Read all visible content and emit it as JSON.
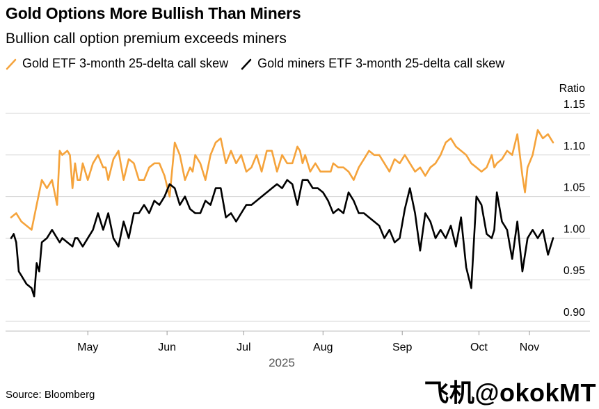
{
  "chart_data": {
    "type": "line",
    "title": "Gold Options More Bullish Than Miners",
    "subtitle": "Bullion call option premium exceeds miners",
    "ylabel": "Ratio",
    "ylim": [
      0.88,
      1.16
    ],
    "yticks": [
      "1.15",
      "1.10",
      "1.05",
      "1.00",
      "0.95",
      "0.90"
    ],
    "ytick_values": [
      1.15,
      1.1,
      1.05,
      1.0,
      0.95,
      0.9
    ],
    "xlim": [
      0,
      212
    ],
    "xticks": [
      "May",
      "Jun",
      "Jul",
      "Aug",
      "Sep",
      "Oct",
      "Nov"
    ],
    "xtick_values": [
      30,
      61,
      91,
      122,
      153,
      183,
      214
    ],
    "xlabel_year": "2025",
    "grid": true,
    "series": [
      {
        "name": "Gold ETF 3-month 25-delta call skew",
        "color": "#f5a33b",
        "x": [
          0,
          2,
          4,
          8,
          10,
          12,
          14,
          16,
          18,
          19,
          20,
          22,
          23,
          24,
          25,
          26,
          27,
          28,
          30,
          32,
          34,
          36,
          37,
          38,
          40,
          42,
          44,
          46,
          48,
          50,
          52,
          54,
          56,
          58,
          60,
          62,
          64,
          66,
          68,
          70,
          71,
          72,
          74,
          76,
          78,
          80,
          82,
          84,
          86,
          88,
          90,
          92,
          94,
          96,
          98,
          100,
          102,
          104,
          106,
          108,
          110,
          112,
          113,
          114,
          115,
          117,
          119,
          121,
          123,
          125,
          126,
          128,
          130,
          132,
          134,
          136,
          138,
          140,
          142,
          144,
          146,
          148,
          150,
          152,
          154,
          156,
          158,
          160,
          162,
          164,
          166,
          168,
          170,
          172,
          174,
          176,
          178,
          180,
          182,
          184,
          186,
          188,
          189,
          190,
          192,
          194,
          196,
          198,
          200,
          201,
          202,
          204,
          206,
          208,
          210,
          212
        ],
        "values": [
          1.025,
          1.03,
          1.02,
          1.01,
          1.04,
          1.07,
          1.06,
          1.07,
          1.04,
          1.105,
          1.1,
          1.105,
          1.1,
          1.06,
          1.09,
          1.07,
          1.07,
          1.09,
          1.07,
          1.09,
          1.1,
          1.085,
          1.085,
          1.07,
          1.095,
          1.105,
          1.07,
          1.095,
          1.09,
          1.07,
          1.07,
          1.085,
          1.09,
          1.09,
          1.075,
          1.05,
          1.115,
          1.1,
          1.07,
          1.085,
          1.08,
          1.1,
          1.09,
          1.07,
          1.1,
          1.115,
          1.12,
          1.09,
          1.105,
          1.09,
          1.1,
          1.08,
          1.085,
          1.1,
          1.08,
          1.105,
          1.105,
          1.08,
          1.1,
          1.09,
          1.09,
          1.11,
          1.105,
          1.09,
          1.1,
          1.08,
          1.09,
          1.08,
          1.08,
          1.08,
          1.09,
          1.085,
          1.085,
          1.08,
          1.07,
          1.085,
          1.095,
          1.105,
          1.1,
          1.1,
          1.09,
          1.08,
          1.095,
          1.09,
          1.1,
          1.09,
          1.08,
          1.085,
          1.075,
          1.085,
          1.09,
          1.1,
          1.115,
          1.12,
          1.11,
          1.105,
          1.1,
          1.09,
          1.085,
          1.08,
          1.085,
          1.1,
          1.085,
          1.09,
          1.095,
          1.105,
          1.1,
          1.125,
          1.075,
          1.055,
          1.085,
          1.1,
          1.13,
          1.12,
          1.125,
          1.115
        ],
        "x2": [],
        "values2": []
      },
      {
        "name": "Gold miners ETF 3-month 25-delta call skew",
        "color": "#000000",
        "x": [
          0,
          1,
          2,
          3,
          4,
          6,
          8,
          9,
          10,
          11,
          12,
          14,
          16,
          18,
          19,
          20,
          22,
          24,
          25,
          26,
          28,
          30,
          32,
          34,
          36,
          38,
          40,
          42,
          44,
          46,
          48,
          50,
          52,
          54,
          56,
          58,
          60,
          62,
          64,
          66,
          68,
          70,
          72,
          74,
          76,
          78,
          80,
          82,
          84,
          86,
          88,
          90,
          92,
          94,
          96,
          98,
          100,
          102,
          104,
          106,
          108,
          110,
          112,
          114,
          116,
          118,
          120,
          122,
          124,
          126,
          128,
          130,
          132,
          134,
          136,
          138,
          140,
          142,
          144,
          146,
          148,
          150,
          152,
          154,
          156,
          158,
          160,
          162,
          164,
          166,
          168,
          170,
          172,
          174,
          176,
          178,
          180,
          182,
          184,
          186,
          188,
          189,
          190,
          192,
          194,
          196,
          198,
          200,
          202,
          204,
          206,
          208,
          210,
          212
        ],
        "values": [
          1.0,
          1.005,
          0.995,
          0.96,
          0.955,
          0.945,
          0.94,
          0.93,
          0.97,
          0.96,
          0.995,
          1.0,
          1.01,
          1.0,
          0.995,
          1.0,
          0.995,
          0.99,
          1.0,
          1.0,
          0.99,
          1.0,
          1.01,
          1.03,
          1.01,
          1.03,
          1.0,
          0.99,
          1.02,
          1.0,
          1.03,
          1.03,
          1.04,
          1.03,
          1.045,
          1.04,
          1.05,
          1.065,
          1.06,
          1.04,
          1.05,
          1.035,
          1.03,
          1.03,
          1.045,
          1.04,
          1.06,
          1.06,
          1.025,
          1.03,
          1.02,
          1.03,
          1.04,
          1.04,
          1.045,
          1.05,
          1.055,
          1.06,
          1.065,
          1.06,
          1.07,
          1.065,
          1.04,
          1.07,
          1.07,
          1.06,
          1.06,
          1.055,
          1.045,
          1.03,
          1.035,
          1.03,
          1.055,
          1.045,
          1.03,
          1.03,
          1.025,
          1.02,
          1.015,
          1.0,
          1.01,
          0.995,
          1.0,
          1.035,
          1.06,
          1.03,
          0.985,
          1.03,
          1.02,
          1.0,
          1.01,
          1.0,
          1.015,
          0.99,
          1.025,
          0.965,
          0.94,
          1.05,
          1.04,
          1.005,
          1.0,
          1.01,
          1.055,
          1.02,
          1.01,
          0.975,
          1.02,
          0.96,
          1.0,
          1.01,
          1.0,
          1.01,
          0.98,
          1.0
        ],
        "x2": [],
        "values2": []
      }
    ]
  },
  "source_text": "Source: Bloomberg",
  "watermark_text": "飞机@okokMT"
}
